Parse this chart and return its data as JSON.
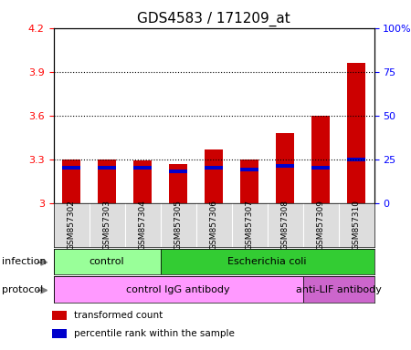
{
  "title": "GDS4583 / 171209_at",
  "samples": [
    "GSM857302",
    "GSM857303",
    "GSM857304",
    "GSM857305",
    "GSM857306",
    "GSM857307",
    "GSM857308",
    "GSM857309",
    "GSM857310"
  ],
  "transformed_count": [
    3.3,
    3.3,
    3.29,
    3.27,
    3.37,
    3.3,
    3.48,
    3.6,
    3.96
  ],
  "percentile_rank": [
    20,
    20,
    20,
    18,
    20,
    19,
    21,
    20,
    25
  ],
  "y_min": 3.0,
  "y_max": 4.2,
  "y_ticks": [
    3.0,
    3.3,
    3.6,
    3.9,
    4.2
  ],
  "y_tick_labels": [
    "3",
    "3.3",
    "3.6",
    "3.9",
    "4.2"
  ],
  "right_y_ticks": [
    0,
    25,
    50,
    75,
    100
  ],
  "right_y_tick_labels": [
    "0",
    "25",
    "50",
    "75",
    "100%"
  ],
  "bar_color_red": "#CC0000",
  "bar_color_blue": "#0000CC",
  "infection_groups": [
    {
      "label": "control",
      "start": 0,
      "end": 3,
      "color": "#99FF99"
    },
    {
      "label": "Escherichia coli",
      "start": 3,
      "end": 9,
      "color": "#33CC33"
    }
  ],
  "protocol_groups": [
    {
      "label": "control IgG antibody",
      "start": 0,
      "end": 7,
      "color": "#FF99FF"
    },
    {
      "label": "anti-LIF antibody",
      "start": 7,
      "end": 9,
      "color": "#CC66CC"
    }
  ],
  "legend_items": [
    {
      "color": "#CC0000",
      "label": "transformed count"
    },
    {
      "color": "#0000CC",
      "label": "percentile rank within the sample"
    }
  ],
  "left_label_infection": "infection",
  "left_label_protocol": "protocol",
  "title_fontsize": 11,
  "tick_fontsize": 8,
  "label_fontsize": 9
}
